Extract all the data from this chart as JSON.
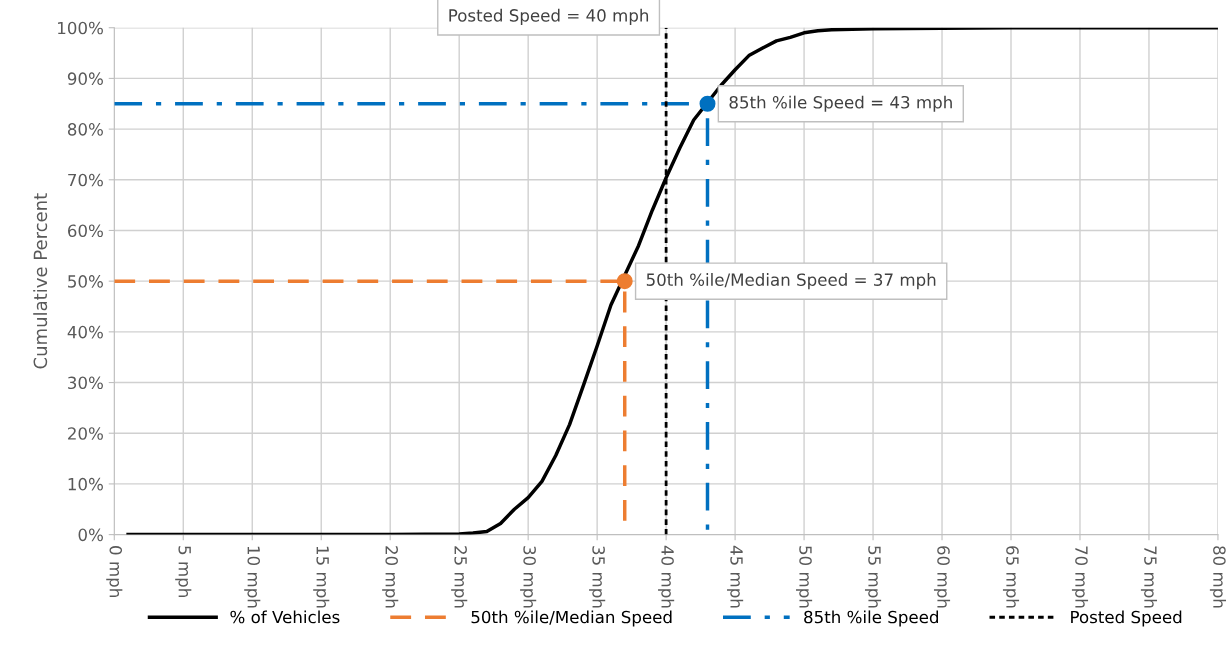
{
  "chart_data": {
    "type": "line",
    "ylabel": "Cumulative Percent",
    "xlim": [
      0,
      80
    ],
    "ylim": [
      0,
      100
    ],
    "xticks": [
      {
        "value": 0,
        "label": "0 mph"
      },
      {
        "value": 5,
        "label": "5 mph"
      },
      {
        "value": 10,
        "label": "10 mph"
      },
      {
        "value": 15,
        "label": "15 mph"
      },
      {
        "value": 20,
        "label": "20 mph"
      },
      {
        "value": 25,
        "label": "25 mph"
      },
      {
        "value": 30,
        "label": "30 mph"
      },
      {
        "value": 35,
        "label": "35 mph"
      },
      {
        "value": 40,
        "label": "40 mph"
      },
      {
        "value": 45,
        "label": "45 mph"
      },
      {
        "value": 50,
        "label": "50 mph"
      },
      {
        "value": 55,
        "label": "55 mph"
      },
      {
        "value": 60,
        "label": "60 mph"
      },
      {
        "value": 65,
        "label": "65 mph"
      },
      {
        "value": 70,
        "label": "70 mph"
      },
      {
        "value": 75,
        "label": "75 mph"
      },
      {
        "value": 80,
        "label": "80 mph"
      }
    ],
    "yticks": [
      {
        "value": 0,
        "label": "0%"
      },
      {
        "value": 10,
        "label": "10%"
      },
      {
        "value": 20,
        "label": "20%"
      },
      {
        "value": 30,
        "label": "30%"
      },
      {
        "value": 40,
        "label": "40%"
      },
      {
        "value": 50,
        "label": "50%"
      },
      {
        "value": 60,
        "label": "60%"
      },
      {
        "value": 70,
        "label": "70%"
      },
      {
        "value": 80,
        "label": "80%"
      },
      {
        "value": 90,
        "label": "90%"
      },
      {
        "value": 100,
        "label": "100%"
      }
    ],
    "grid": true,
    "legend": "bottom",
    "series": [
      {
        "name": "% of Vehicles",
        "color": "#000000",
        "line_style": "solid",
        "x": [
          1,
          10,
          20,
          25,
          26,
          27,
          28,
          29,
          30,
          31,
          32,
          33,
          34,
          35,
          36,
          38,
          39,
          40,
          41,
          42,
          44,
          45,
          46,
          47,
          48,
          49,
          50,
          51,
          52,
          55,
          60,
          65,
          70,
          80
        ],
        "values": [
          0,
          0,
          0,
          0.1,
          0.3,
          0.6,
          2.2,
          5,
          7.3,
          10.5,
          15.6,
          21.7,
          29.4,
          37.2,
          45.3,
          57,
          64,
          70.4,
          76.3,
          81.8,
          88.7,
          91.7,
          94.5,
          96,
          97.4,
          98.1,
          99,
          99.4,
          99.6,
          99.8,
          99.9,
          100,
          100,
          100
        ]
      },
      {
        "name": "50th %ile/Median Speed",
        "color": "#ed7d31",
        "line_style": "dashed",
        "x": [
          0,
          37,
          37
        ],
        "values": [
          50,
          50,
          0
        ]
      },
      {
        "name": "85th %ile Speed",
        "color": "#0070c0",
        "line_style": "dashdot",
        "x": [
          0,
          43,
          43
        ],
        "values": [
          85,
          85,
          0
        ]
      },
      {
        "name": "Posted Speed",
        "color": "#000000",
        "line_style": "dotted",
        "x": [
          40,
          40
        ],
        "values": [
          0,
          100
        ]
      },
      {
        "type": "scatter",
        "marker": "circle",
        "color": "#ed7d31",
        "x": [
          37
        ],
        "values": [
          50
        ]
      },
      {
        "type": "scatter",
        "marker": "circle",
        "color": "#0070c0",
        "x": [
          43
        ],
        "values": [
          85
        ]
      }
    ],
    "annotations": [
      {
        "text": "Posted Speed = 40 mph",
        "x": 40,
        "y": 100
      },
      {
        "text": "85th %ile Speed = 43 mph",
        "x": 43,
        "y": 85
      },
      {
        "text": "50th %ile/Median Speed = 37 mph",
        "x": 37,
        "y": 50
      }
    ]
  }
}
